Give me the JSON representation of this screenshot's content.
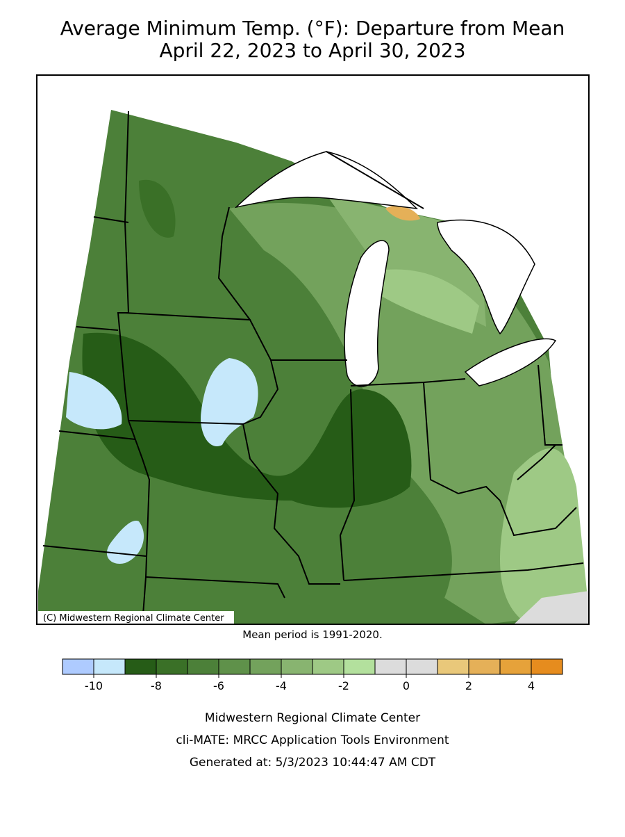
{
  "header": {
    "title": "Average Minimum Temp. (°F): Departure from Mean",
    "subtitle": "April 22, 2023 to April 30, 2023"
  },
  "map": {
    "credit": "(C) Midwestern Regional Climate Center",
    "note": "Mean period is 1991-2020."
  },
  "legend": {
    "lim": [
      -11,
      5
    ],
    "ticks": [
      -10,
      -8,
      -6,
      -4,
      -2,
      0,
      2,
      4
    ],
    "colors": [
      "#aecbff",
      "#c6e8fb",
      "#265c17",
      "#3a7027",
      "#4c8039",
      "#5f914a",
      "#73a25c",
      "#88b470",
      "#9ec985",
      "#b3e09d",
      "#dcdcdc",
      "#dcdcdc",
      "#e9c87a",
      "#e5b058",
      "#e6a23a",
      "#e68c1e"
    ]
  },
  "footer": {
    "lines": [
      "Midwestern Regional Climate Center",
      "cli-MATE: MRCC Application Tools Environment",
      "Generated at: 5/3/2023 10:44:47 AM CDT"
    ]
  }
}
